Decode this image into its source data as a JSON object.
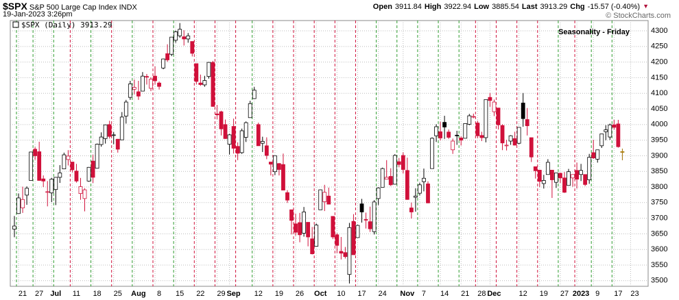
{
  "header": {
    "symbol": "$SPX",
    "description": "S&P 500 Large Cap Index",
    "exchange": "INDX",
    "date": "19-Jan-2023 3:26pm",
    "open_label": "Open",
    "open": 3911.84,
    "high_label": "High",
    "high": 3922.94,
    "low_label": "Low",
    "low": 3885.54,
    "last_label": "Last",
    "last": 3913.29,
    "chg_label": "Chg",
    "chg": "-15.57 (-0.40%)",
    "copyright": "© StockCharts.com"
  },
  "chart_data": {
    "type": "candlestick",
    "title": "Seasonality - Friday",
    "categories": [
      null,
      "21",
      null,
      null,
      null,
      "27",
      null,
      null,
      null,
      "Jul",
      null,
      null,
      null,
      null,
      "11",
      null,
      null,
      null,
      null,
      "18",
      null,
      null,
      null,
      null,
      "25",
      null,
      null,
      null,
      null,
      "Aug",
      null,
      null,
      null,
      null,
      "8",
      null,
      null,
      null,
      null,
      "15",
      null,
      null,
      null,
      null,
      "22",
      null,
      null,
      null,
      null,
      "29",
      null,
      null,
      "Sep",
      null,
      null,
      null,
      null,
      null,
      "12",
      null,
      null,
      null,
      null,
      "19",
      null,
      null,
      null,
      null,
      "26",
      null,
      null,
      null,
      null,
      "Oct",
      null,
      null,
      null,
      null,
      "10",
      null,
      null,
      null,
      null,
      "17",
      null,
      null,
      null,
      null,
      "24",
      null,
      null,
      null,
      null,
      null,
      "Nov",
      null,
      null,
      null,
      "7",
      null,
      null,
      null,
      null,
      "14",
      null,
      null,
      null,
      null,
      "21",
      null,
      null,
      null,
      "28",
      null,
      null,
      "Dec",
      null,
      null,
      null,
      null,
      null,
      null,
      "12",
      null,
      null,
      null,
      null,
      "19",
      null,
      null,
      null,
      null,
      "27",
      null,
      null,
      null,
      "2023",
      null,
      null,
      null,
      "9",
      null,
      null,
      null,
      null,
      "17",
      null,
      null,
      null,
      "23"
    ],
    "series": [
      {
        "name": "$SPX (Daily) 3913.29",
        "open": [
          3665,
          3715,
          3733,
          3774,
          3821,
          3921,
          3913,
          3826,
          3785,
          3781,
          3792,
          3831,
          3858,
          3888,
          3880,
          3851,
          3779,
          3763,
          3819,
          3883,
          3860,
          3936,
          3955,
          4000,
          3966,
          3953,
          3951,
          4027,
          4087,
          4113,
          4105,
          4107,
          4154,
          4116,
          4155,
          4133,
          4181,
          4227,
          4225,
          4270,
          4284,
          4281,
          4274,
          4266,
          4195,
          4133,
          4127,
          4154,
          4199,
          4034,
          4041,
          4000,
          3937,
          3994,
          3930,
          3910,
          3959,
          4022,
          4083,
          4000,
          3940,
          3932,
          3880,
          3849,
          3875,
          3872,
          3782,
          3727,
          3682,
          3686,
          3652,
          3687,
          3634,
          3610,
          3727,
          3753,
          3771,
          3706,
          3647,
          3594,
          3590,
          3520,
          3690,
          3638,
          3746,
          3696,
          3689,
          3657,
          3763,
          3799,
          3825,
          3834,
          3809,
          3881,
          3901,
          3853,
          3733,
          3767,
          3780,
          3817,
          3810,
          3859,
          3964,
          3977,
          4007,
          3976,
          3919,
          3966,
          3957,
          3956,
          4001,
          4024,
          4005,
          3965,
          3958,
          4087,
          4041,
          4053,
          3997,
          3934,
          3947,
          3955,
          3940,
          4069,
          4016,
          3958,
          3865,
          3854,
          3811,
          3840,
          3854,
          3815,
          3844,
          3829,
          3805,
          3829,
          3853,
          3840,
          3840,
          3823,
          3910,
          3889,
          3932,
          3977,
          3960,
          3999,
          4002,
          3911.84,
          null,
          null
        ],
        "high": [
          3707,
          3779,
          3801,
          3802,
          3913,
          3928,
          3945,
          3837,
          3819,
          3829,
          3832,
          3870,
          3910,
          3918,
          3880,
          3874,
          3829,
          3796,
          3864,
          3903,
          3939,
          3975,
          4000,
          4012,
          3976,
          3954,
          4040,
          4079,
          4140,
          4144,
          4140,
          4168,
          4162,
          4151,
          4186,
          4138,
          4211,
          4257,
          4280,
          4301,
          4325,
          4302,
          4293,
          4266,
          4195,
          4160,
          4156,
          4200,
          4204,
          4063,
          4044,
          4016,
          3970,
          4019,
          3943,
          3987,
          4010,
          4076,
          4120,
          4006,
          3961,
          3959,
          3880,
          3900,
          3877,
          3907,
          3790,
          3727,
          3715,
          3717,
          3736,
          3687,
          3672,
          3683,
          3792,
          3807,
          3798,
          3706,
          3652,
          3640,
          3608,
          3685,
          3713,
          3679,
          3762,
          3718,
          3737,
          3758,
          3799,
          3862,
          3886,
          3860,
          3905,
          3893,
          3911,
          3894,
          3750,
          3796,
          3814,
          3859,
          3818,
          3959,
          4001,
          4009,
          4028,
          3984,
          3955,
          3980,
          3962,
          4004,
          4034,
          4035,
          4012,
          3977,
          4080,
          4101,
          4080,
          4053,
          4001,
          3951,
          3966,
          3977,
          3991,
          4101,
          4053,
          3958,
          3865,
          3855,
          3839,
          3889,
          3854,
          3846,
          3846,
          3848,
          3858,
          3840,
          3878,
          3874,
          3840,
          3906,
          3951,
          3919,
          3970,
          3998,
          4003,
          4015,
          4015,
          3922.94,
          null,
          null
        ],
        "low": [
          3639,
          3715,
          3717,
          3743,
          3821,
          3887,
          3820,
          3800,
          3738,
          3752,
          3742,
          3813,
          3858,
          3869,
          3847,
          3814,
          3759,
          3722,
          3817,
          3813,
          3860,
          3929,
          3939,
          3955,
          3937,
          3910,
          3951,
          4003,
          4079,
          4097,
          4079,
          4107,
          4128,
          4107,
          4128,
          4112,
          4177,
          4201,
          4219,
          4262,
          4278,
          4253,
          4262,
          4218,
          4129,
          4124,
          4121,
          4147,
          4057,
          4017,
          3965,
          3954,
          3904,
          3907,
          3886,
          3906,
          3944,
          4022,
          4083,
          3932,
          3912,
          3889,
          3837,
          3838,
          3837,
          3789,
          3749,
          3648,
          3644,
          3623,
          3641,
          3610,
          3584,
          3610,
          3727,
          3723,
          3744,
          3633,
          3588,
          3568,
          3571,
          3491,
          3584,
          3638,
          3686,
          3667,
          3656,
          3648,
          3742,
          3799,
          3825,
          3803,
          3808,
          3863,
          3843,
          3759,
          3699,
          3721,
          3773,
          3786,
          3748,
          3859,
          3944,
          3949,
          3954,
          3954,
          3906,
          3935,
          3933,
          3956,
          3998,
          4020,
          3956,
          3947,
          3943,
          4057,
          4027,
          3984,
          3918,
          3917,
          3935,
          3933,
          3937,
          3993,
          3965,
          3880,
          3827,
          3800,
          3795,
          3840,
          3765,
          3797,
          3813,
          3781,
          3805,
          3801,
          3795,
          3819,
          3803,
          3810,
          3890,
          3878,
          3925,
          3950,
          3951,
          3984,
          3926,
          3885.54,
          null,
          null
        ],
        "close": [
          3675,
          3765,
          3760,
          3796,
          3912,
          3900,
          3821,
          3819,
          3785,
          3825,
          3831,
          3845,
          3903,
          3899,
          3855,
          3819,
          3801,
          3791,
          3863,
          3831,
          3937,
          3960,
          3999,
          3962,
          3967,
          3921,
          4024,
          4072,
          4130,
          4119,
          4091,
          4155,
          4152,
          4145,
          4140,
          4122,
          4210,
          4207,
          4280,
          4297,
          4305,
          4274,
          4284,
          4228,
          4138,
          4128,
          4141,
          4199,
          4058,
          4031,
          3986,
          3955,
          3967,
          3924,
          3908,
          3980,
          4006,
          4067,
          4110,
          3932,
          3946,
          3901,
          3873,
          3900,
          3856,
          3790,
          3758,
          3693,
          3655,
          3647,
          3720,
          3640,
          3586,
          3678,
          3791,
          3783,
          3745,
          3640,
          3613,
          3588,
          3577,
          3670,
          3583,
          3677,
          3720,
          3695,
          3666,
          3752,
          3797,
          3859,
          3831,
          3807,
          3901,
          3872,
          3856,
          3760,
          3720,
          3771,
          3807,
          3828,
          3749,
          3956,
          3993,
          3957,
          3992,
          3959,
          3947,
          3965,
          3950,
          4003,
          4028,
          4026,
          3964,
          3958,
          4080,
          4077,
          4072,
          3999,
          3941,
          3934,
          3964,
          3934,
          3991,
          4019,
          3996,
          3896,
          3852,
          3818,
          3821,
          3879,
          3823,
          3845,
          3829,
          3783,
          3849,
          3840,
          3825,
          3853,
          3808,
          3895,
          3893,
          3919,
          3970,
          3983,
          3999,
          3991,
          3929,
          3913.29,
          null,
          null
        ]
      }
    ],
    "up_color": "#000000",
    "down_color": "#d0103a",
    "last_color": "#f2c200",
    "friday_up_color": "#2e9b2e",
    "friday_down_color": "#d0103a",
    "grid_color": "#bbbbbb",
    "title_color": "#1010d0",
    "ylim": [
      3482,
      4333
    ],
    "yticks": [
      3500,
      3550,
      3600,
      3650,
      3700,
      3750,
      3800,
      3850,
      3900,
      3950,
      4000,
      4050,
      4100,
      4150,
      4200,
      4250,
      4300
    ],
    "grid": true
  }
}
